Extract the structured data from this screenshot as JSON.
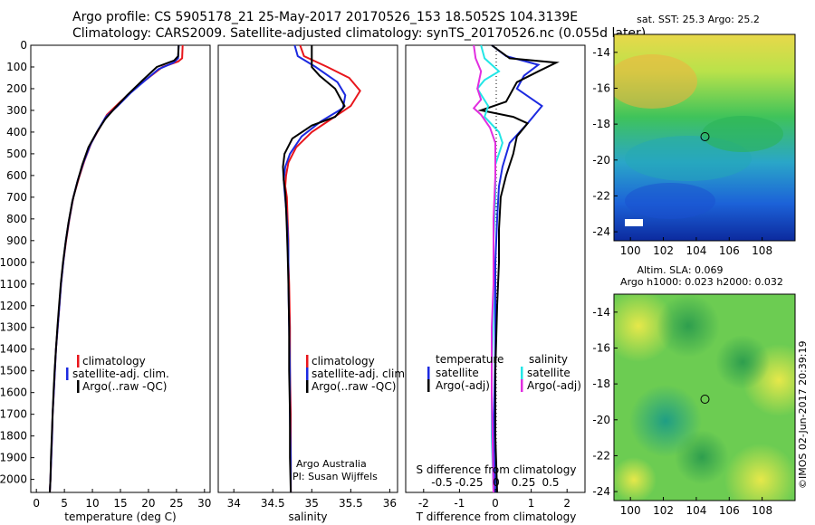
{
  "header": {
    "line1": "Argo profile: CS 5905178_21 25-May-2017 20170526_153 18.5052S 104.3139E",
    "line2": "Climatology: CARS2009. Satellite-adjusted climatology: synTS_20170526.nc (0.055d later)"
  },
  "side_label": "©IMOS 02-Jun-2017 20:39:19",
  "colors": {
    "climatology": "#e8161c",
    "satellite": "#1c2ae0",
    "argo": "#000000",
    "sal_sat": "#22e6e6",
    "sal_argo": "#e22ee0"
  },
  "chart_data": [
    {
      "type": "line",
      "xlabel": "temperature (deg C)",
      "xlim": [
        -1,
        31
      ],
      "xticks": [
        0,
        5,
        10,
        15,
        20,
        25,
        30
      ],
      "ylim": [
        0,
        2060
      ],
      "yticks": [
        0,
        100,
        200,
        300,
        400,
        500,
        600,
        700,
        800,
        900,
        1000,
        1100,
        1200,
        1300,
        1400,
        1500,
        1600,
        1700,
        1800,
        1900,
        2000
      ],
      "legend": [
        "climatology",
        "satellite-adj. clim.",
        "Argo(..raw -QC)"
      ],
      "series": [
        {
          "name": "climatology",
          "color": "#e8161c",
          "points": [
            [
              26.1,
              0
            ],
            [
              26.0,
              60
            ],
            [
              25.3,
              75
            ],
            [
              22.5,
              100
            ],
            [
              20.0,
              150
            ],
            [
              17.5,
              200
            ],
            [
              15.0,
              260
            ],
            [
              12.6,
              320
            ],
            [
              11.3,
              380
            ],
            [
              9.8,
              450
            ],
            [
              8.6,
              530
            ],
            [
              7.6,
              610
            ],
            [
              6.6,
              700
            ],
            [
              5.9,
              800
            ],
            [
              5.3,
              900
            ],
            [
              4.8,
              1000
            ],
            [
              4.4,
              1100
            ],
            [
              4.1,
              1200
            ],
            [
              3.8,
              1300
            ],
            [
              3.5,
              1400
            ],
            [
              3.3,
              1500
            ],
            [
              3.1,
              1600
            ],
            [
              2.9,
              1700
            ],
            [
              2.8,
              1800
            ],
            [
              2.65,
              1900
            ],
            [
              2.5,
              2000
            ],
            [
              2.4,
              2060
            ]
          ]
        },
        {
          "name": "satellite-adj. clim.",
          "color": "#1c2ae0",
          "points": [
            [
              25.4,
              0
            ],
            [
              25.3,
              60
            ],
            [
              24.5,
              80
            ],
            [
              21.8,
              110
            ],
            [
              19.5,
              160
            ],
            [
              16.8,
              220
            ],
            [
              14.5,
              280
            ],
            [
              12.4,
              330
            ],
            [
              11.0,
              390
            ],
            [
              9.6,
              460
            ],
            [
              8.4,
              540
            ],
            [
              7.4,
              620
            ],
            [
              6.5,
              710
            ],
            [
              5.8,
              810
            ],
            [
              5.25,
              900
            ],
            [
              4.8,
              1000
            ],
            [
              4.4,
              1100
            ],
            [
              4.1,
              1200
            ],
            [
              3.8,
              1300
            ],
            [
              3.5,
              1400
            ],
            [
              3.3,
              1500
            ],
            [
              3.1,
              1600
            ],
            [
              2.9,
              1700
            ],
            [
              2.8,
              1800
            ],
            [
              2.65,
              1900
            ],
            [
              2.5,
              2000
            ],
            [
              2.4,
              2060
            ]
          ]
        },
        {
          "name": "Argo(..raw -QC)",
          "color": "#000000",
          "points": [
            [
              25.4,
              0
            ],
            [
              25.3,
              50
            ],
            [
              24.6,
              70
            ],
            [
              21.5,
              100
            ],
            [
              19.0,
              160
            ],
            [
              16.2,
              230
            ],
            [
              14.0,
              290
            ],
            [
              12.3,
              340
            ],
            [
              10.8,
              400
            ],
            [
              9.3,
              470
            ],
            [
              8.2,
              550
            ],
            [
              7.3,
              630
            ],
            [
              6.4,
              720
            ],
            [
              5.7,
              820
            ],
            [
              5.2,
              910
            ],
            [
              4.75,
              1000
            ],
            [
              4.35,
              1100
            ],
            [
              4.05,
              1200
            ],
            [
              3.75,
              1300
            ],
            [
              3.5,
              1400
            ],
            [
              3.25,
              1500
            ],
            [
              3.05,
              1600
            ],
            [
              2.9,
              1700
            ],
            [
              2.75,
              1800
            ],
            [
              2.6,
              1900
            ],
            [
              2.5,
              2000
            ],
            [
              2.4,
              2060
            ]
          ]
        }
      ]
    },
    {
      "type": "line",
      "xlabel": "salinity",
      "xlim": [
        33.8,
        36.1
      ],
      "xticks": [
        34,
        34.5,
        35,
        35.5,
        36
      ],
      "ylim": [
        0,
        2060
      ],
      "legend": [
        "climatology",
        "satellite-adj. clim.",
        "Argo(..raw -QC)"
      ],
      "annotation": [
        "Argo Australia",
        "PI: Susan Wijffels"
      ],
      "series": [
        {
          "name": "climatology",
          "color": "#e8161c",
          "points": [
            [
              34.85,
              0
            ],
            [
              34.9,
              50
            ],
            [
              35.2,
              100
            ],
            [
              35.48,
              150
            ],
            [
              35.62,
              210
            ],
            [
              35.5,
              280
            ],
            [
              35.25,
              340
            ],
            [
              35.0,
              400
            ],
            [
              34.8,
              470
            ],
            [
              34.7,
              540
            ],
            [
              34.67,
              600
            ],
            [
              34.66,
              650
            ],
            [
              34.68,
              700
            ],
            [
              34.69,
              800
            ],
            [
              34.7,
              900
            ],
            [
              34.7,
              1000
            ],
            [
              34.71,
              1100
            ],
            [
              34.72,
              1300
            ],
            [
              34.72,
              1500
            ],
            [
              34.73,
              1700
            ],
            [
              34.73,
              1900
            ],
            [
              34.73,
              2060
            ]
          ]
        },
        {
          "name": "satellite-adj. clim.",
          "color": "#1c2ae0",
          "points": [
            [
              34.78,
              0
            ],
            [
              34.82,
              50
            ],
            [
              35.05,
              100
            ],
            [
              35.33,
              170
            ],
            [
              35.43,
              230
            ],
            [
              35.4,
              290
            ],
            [
              35.12,
              350
            ],
            [
              34.87,
              420
            ],
            [
              34.72,
              500
            ],
            [
              34.66,
              560
            ],
            [
              34.64,
              620
            ],
            [
              34.65,
              670
            ],
            [
              34.67,
              750
            ],
            [
              34.69,
              850
            ],
            [
              34.7,
              950
            ],
            [
              34.7,
              1100
            ],
            [
              34.71,
              1300
            ],
            [
              34.72,
              1500
            ],
            [
              34.72,
              1700
            ],
            [
              34.73,
              1900
            ],
            [
              34.73,
              2060
            ]
          ]
        },
        {
          "name": "Argo(..raw -QC)",
          "color": "#000000",
          "points": [
            [
              35.0,
              0
            ],
            [
              35.0,
              100
            ],
            [
              35.1,
              140
            ],
            [
              35.3,
              200
            ],
            [
              35.42,
              280
            ],
            [
              35.3,
              330
            ],
            [
              35.0,
              370
            ],
            [
              34.75,
              430
            ],
            [
              34.65,
              500
            ],
            [
              34.63,
              560
            ],
            [
              34.64,
              620
            ],
            [
              34.66,
              680
            ],
            [
              34.67,
              750
            ],
            [
              34.68,
              850
            ],
            [
              34.69,
              950
            ],
            [
              34.7,
              1100
            ],
            [
              34.71,
              1300
            ],
            [
              34.71,
              1500
            ],
            [
              34.72,
              1700
            ],
            [
              34.72,
              1900
            ],
            [
              34.73,
              2060
            ]
          ]
        }
      ]
    },
    {
      "type": "line",
      "xlabel": "T difference from climatology",
      "xlabel2": "S difference from climatology",
      "xlim": [
        -2.5,
        2.5
      ],
      "xticks": [
        -2,
        -1,
        0,
        1,
        2
      ],
      "sticks": [
        -0.5,
        -0.25,
        0,
        0.25,
        0.5
      ],
      "ylim": [
        0,
        2060
      ],
      "legend_t_title": "temperature",
      "legend_s_title": "salinity",
      "legend_t": [
        "satellite",
        "Argo(-adj)"
      ],
      "legend_s": [
        "satellite",
        "Argo(-adj)"
      ],
      "series": [
        {
          "name": "satellite",
          "color": "#1c2ae0",
          "points": [
            [
              -0.1,
              0
            ],
            [
              0.3,
              50
            ],
            [
              1.2,
              90
            ],
            [
              0.8,
              140
            ],
            [
              0.6,
              200
            ],
            [
              1.3,
              280
            ],
            [
              0.9,
              360
            ],
            [
              0.4,
              450
            ],
            [
              0.2,
              560
            ],
            [
              0.1,
              650
            ],
            [
              0.05,
              800
            ],
            [
              0.0,
              1000
            ],
            [
              0.0,
              1400
            ],
            [
              -0.05,
              1800
            ],
            [
              0.0,
              2060
            ]
          ]
        },
        {
          "name": "Argo(-adj)",
          "color": "#000000",
          "points": [
            [
              -0.1,
              0
            ],
            [
              0.4,
              60
            ],
            [
              1.7,
              80
            ],
            [
              1.2,
              120
            ],
            [
              0.6,
              170
            ],
            [
              0.3,
              260
            ],
            [
              -0.4,
              300
            ],
            [
              0.5,
              330
            ],
            [
              0.9,
              360
            ],
            [
              0.6,
              420
            ],
            [
              0.5,
              500
            ],
            [
              0.3,
              600
            ],
            [
              0.15,
              700
            ],
            [
              0.1,
              850
            ],
            [
              0.1,
              1000
            ],
            [
              0.05,
              1200
            ],
            [
              0.0,
              1500
            ],
            [
              0.0,
              1800
            ],
            [
              0.05,
              2060
            ]
          ]
        },
        {
          "name": "satellite (S)",
          "color": "#22e6e6",
          "points": [
            [
              -0.4,
              0
            ],
            [
              -0.3,
              60
            ],
            [
              0.1,
              120
            ],
            [
              -0.3,
              160
            ],
            [
              -0.5,
              200
            ],
            [
              -0.2,
              280
            ],
            [
              -0.3,
              330
            ],
            [
              0.1,
              400
            ],
            [
              0.2,
              450
            ],
            [
              0.0,
              550
            ],
            [
              0.0,
              700
            ],
            [
              -0.05,
              900
            ],
            [
              -0.05,
              1200
            ],
            [
              -0.1,
              1500
            ],
            [
              -0.1,
              1800
            ],
            [
              -0.05,
              2060
            ]
          ]
        },
        {
          "name": "Argo(-adj) (S)",
          "color": "#e22ee0",
          "points": [
            [
              -0.6,
              0
            ],
            [
              -0.55,
              60
            ],
            [
              -0.4,
              120
            ],
            [
              -0.5,
              200
            ],
            [
              -0.4,
              250
            ],
            [
              -0.6,
              290
            ],
            [
              -0.4,
              320
            ],
            [
              -0.15,
              380
            ],
            [
              0.0,
              450
            ],
            [
              0.0,
              600
            ],
            [
              -0.05,
              800
            ],
            [
              -0.05,
              1100
            ],
            [
              -0.1,
              1300
            ],
            [
              -0.1,
              1600
            ],
            [
              -0.05,
              2060
            ]
          ]
        }
      ]
    },
    {
      "type": "heatmap",
      "title": "sat. SST: 25.3  Argo: 25.2",
      "xlim": [
        99,
        110
      ],
      "ylim": [
        -24.5,
        -13
      ],
      "xticks": [
        100,
        102,
        104,
        106,
        108
      ],
      "yticks": [
        -14,
        -16,
        -18,
        -20,
        -22,
        -24
      ],
      "marker": [
        104.31,
        -18.51
      ]
    },
    {
      "type": "heatmap",
      "title": "Altim. SLA: 0.069",
      "subtitle": "Argo h1000: 0.023  h2000: 0.032",
      "xlim": [
        99,
        110
      ],
      "ylim": [
        -24.5,
        -13
      ],
      "xticks": [
        100,
        102,
        104,
        106,
        108
      ],
      "yticks": [
        -14,
        -16,
        -18,
        -20,
        -22,
        -24
      ],
      "marker": [
        104.31,
        -18.51
      ]
    }
  ]
}
